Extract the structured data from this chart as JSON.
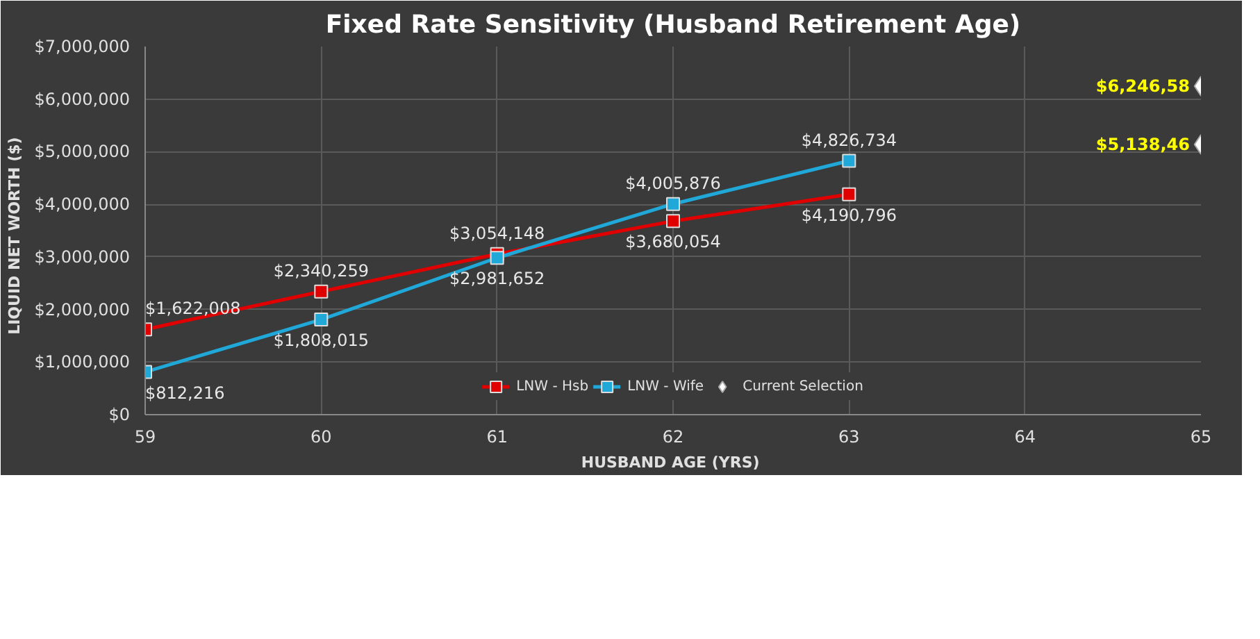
{
  "chart_data": {
    "type": "line",
    "title": "Fixed Rate Sensitivity (Husband Retirement Age)",
    "xlabel": "HUSBAND  AGE (YRS)",
    "ylabel": "LIQUID  NET  WORTH ($)",
    "x": [
      59,
      60,
      61,
      62,
      63
    ],
    "series": [
      {
        "name": "LNW - Hsb",
        "color": "#e00000",
        "marker": "square",
        "values": [
          1622008,
          2340259,
          3054148,
          3680054,
          4190796
        ],
        "value_labels": [
          "$1,622,008",
          "$2,340,259",
          "$3,054,148",
          "$3,680,054",
          "$4,190,796"
        ]
      },
      {
        "name": "LNW - Wife",
        "color": "#1fa8d8",
        "marker": "square",
        "values": [
          812216,
          1808015,
          2981652,
          4005876,
          4826734
        ],
        "value_labels": [
          "$812,216",
          "$1,808,015",
          "$2,981,652",
          "$4,005,876",
          "$4,826,734"
        ]
      },
      {
        "name": "Current Selection",
        "type": "scatter",
        "color": "#ffffff",
        "marker": "diamond",
        "x": [
          65,
          65
        ],
        "values": [
          6246580,
          5138460
        ],
        "value_labels": [
          "$6,246,58",
          "$5,138,46"
        ]
      }
    ],
    "xlim": [
      59,
      65
    ],
    "xticks": [
      59,
      60,
      61,
      62,
      63,
      64,
      65
    ],
    "ylim": [
      0,
      7000000
    ],
    "yticks": [
      {
        "value": 0,
        "label": "$0"
      },
      {
        "value": 1000000,
        "label": "$1,000,000"
      },
      {
        "value": 2000000,
        "label": "$2,000,000"
      },
      {
        "value": 3000000,
        "label": "$3,000,000"
      },
      {
        "value": 4000000,
        "label": "$4,000,000"
      },
      {
        "value": 5000000,
        "label": "$5,000,000"
      },
      {
        "value": 6000000,
        "label": "$6,000,000"
      },
      {
        "value": 7000000,
        "label": "$7,000,000"
      }
    ],
    "grid": true,
    "legend": "bottom"
  }
}
